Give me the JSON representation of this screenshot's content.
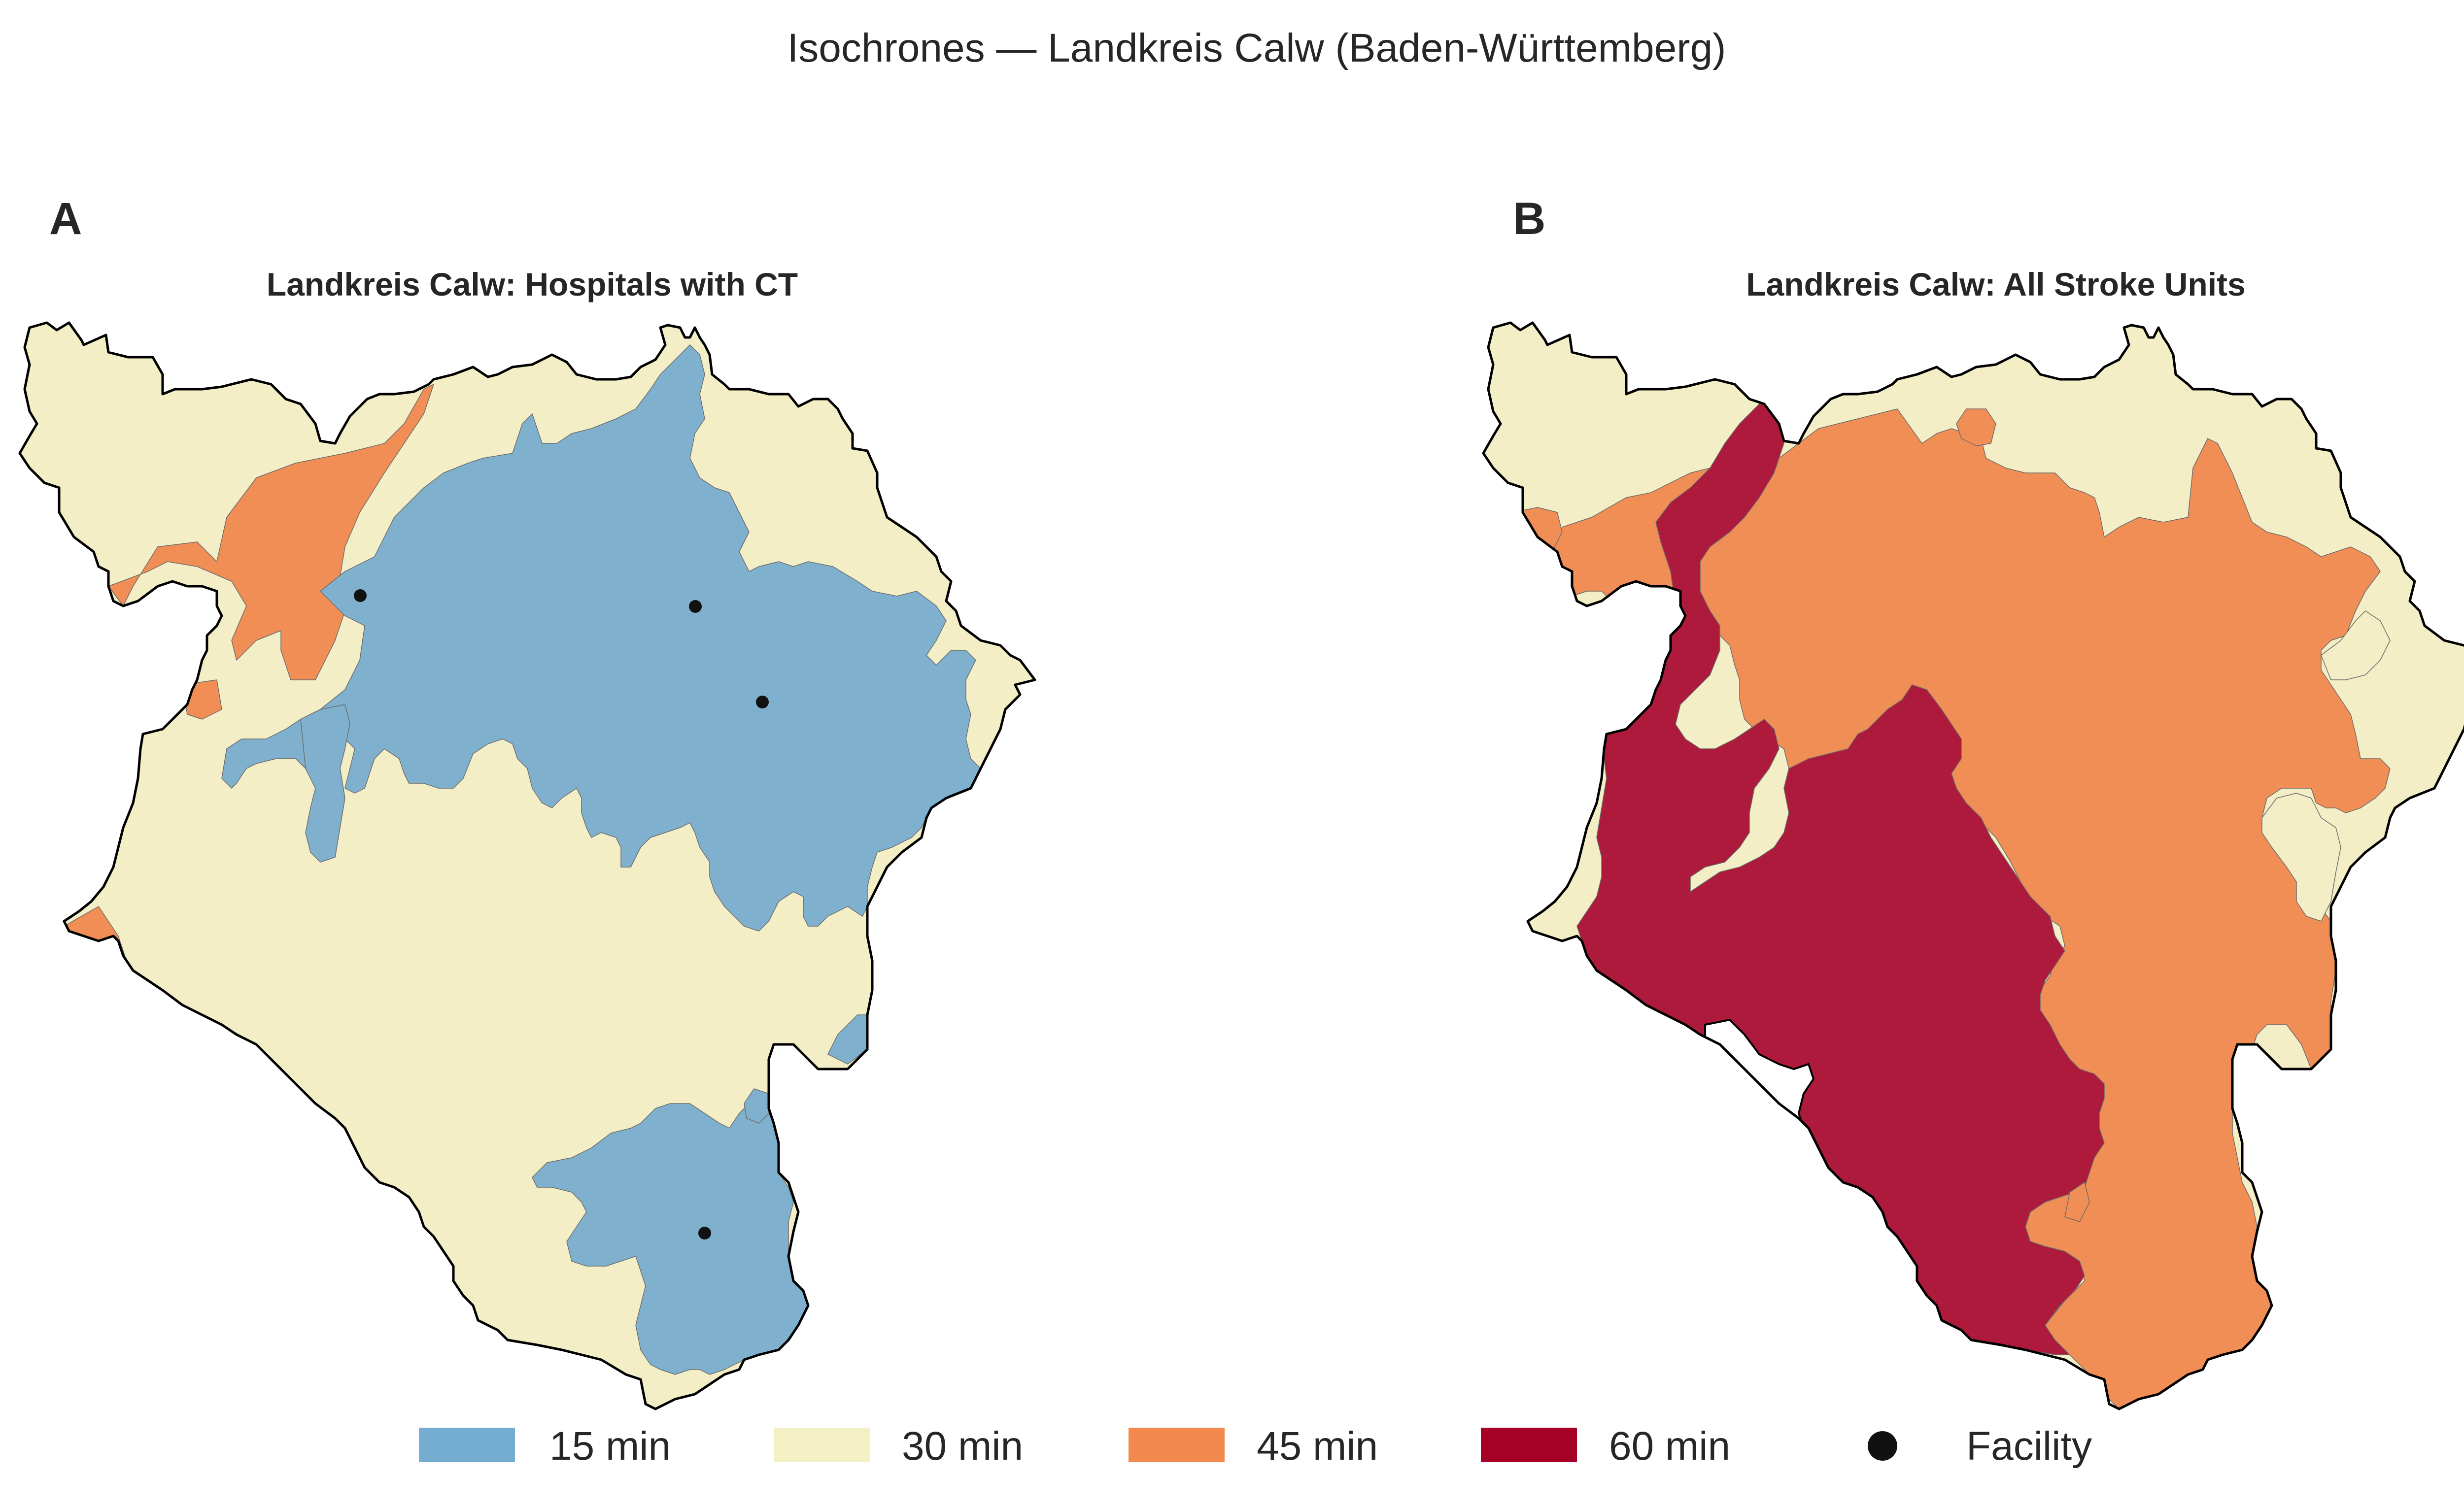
{
  "figure_title": "Isochrones — Landkreis Calw (Baden-Württemberg)",
  "panels": [
    {
      "letter": "A",
      "title": "Landkreis Calw: Hospitals with CT"
    },
    {
      "letter": "B",
      "title": "Landkreis Calw: All Stroke Units"
    }
  ],
  "legend": [
    {
      "label": "15 min",
      "color": "#74add1",
      "kind": "patch"
    },
    {
      "label": "30 min",
      "color": "#f3f1c4",
      "kind": "patch"
    },
    {
      "label": "45 min",
      "color": "#f4894f",
      "kind": "patch"
    },
    {
      "label": "60 min",
      "color": "#a50026",
      "kind": "patch"
    },
    {
      "label": "Facility",
      "color": "#111111",
      "kind": "marker"
    }
  ],
  "colors": {
    "15": "#7fb1cf",
    "30": "#f3eec6",
    "45": "#f08e56",
    "60": "#ad1a3c",
    "outline": "#000000",
    "facility": "#111111"
  }
}
